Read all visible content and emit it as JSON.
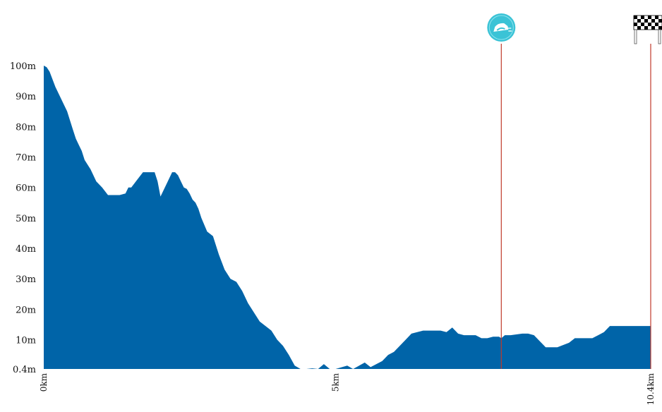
{
  "chart_data": {
    "type": "area",
    "title": "",
    "xlabel": "",
    "ylabel": "",
    "xlim": [
      0,
      10.4
    ],
    "ylim": [
      0.4,
      100
    ],
    "y_ticks": [
      {
        "value": 0.4,
        "label": "0.4m"
      },
      {
        "value": 10,
        "label": "10m"
      },
      {
        "value": 20,
        "label": "20m"
      },
      {
        "value": 30,
        "label": "30m"
      },
      {
        "value": 40,
        "label": "40m"
      },
      {
        "value": 50,
        "label": "50m"
      },
      {
        "value": 60,
        "label": "60m"
      },
      {
        "value": 70,
        "label": "70m"
      },
      {
        "value": 80,
        "label": "80m"
      },
      {
        "value": 90,
        "label": "90m"
      },
      {
        "value": 100,
        "label": "100m"
      }
    ],
    "x_ticks": [
      {
        "value": 0,
        "label": "0km"
      },
      {
        "value": 5,
        "label": "5km"
      },
      {
        "value": 10.4,
        "label": "10.4km"
      }
    ],
    "grid": false,
    "fill_color": "#0064a8",
    "marker_line_color": "#c0392b",
    "markers": [
      {
        "x": 7.84,
        "icon": "sprint-icon",
        "color": "#3bc3d6"
      },
      {
        "x": 10.4,
        "icon": "finish-flag-icon",
        "color": "#111111"
      }
    ],
    "series": [
      {
        "x": [
          0,
          0.05,
          0.1,
          0.2,
          0.3,
          0.4,
          0.5,
          0.55,
          0.6,
          0.65,
          0.7,
          0.8,
          0.9,
          1.0,
          1.1,
          1.2,
          1.3,
          1.4,
          1.45,
          1.5,
          1.6,
          1.7,
          1.8,
          1.9,
          1.95,
          2.0,
          2.1,
          2.2,
          2.25,
          2.3,
          2.35,
          2.4,
          2.45,
          2.5,
          2.55,
          2.6,
          2.65,
          2.7,
          2.8,
          2.9,
          3.0,
          3.1,
          3.2,
          3.3,
          3.4,
          3.5,
          3.6,
          3.7,
          3.8,
          3.9,
          4.0,
          4.1,
          4.2,
          4.3,
          4.4,
          4.5,
          4.6,
          4.7,
          4.8,
          4.9,
          5.0,
          5.2,
          5.3,
          5.5,
          5.6,
          5.8,
          5.9,
          6.0,
          6.2,
          6.3,
          6.5,
          6.6,
          6.8,
          6.9,
          7.0,
          7.1,
          7.2,
          7.3,
          7.4,
          7.5,
          7.6,
          7.7,
          7.8,
          7.84,
          7.9,
          8.0,
          8.2,
          8.3,
          8.4,
          8.6,
          8.8,
          9.0,
          9.1,
          9.3,
          9.4,
          9.5,
          9.6,
          9.7,
          9.8,
          9.9,
          10.0,
          10.1,
          10.2,
          10.3,
          10.4
        ],
        "y": [
          100,
          99.5,
          98,
          93,
          89,
          85,
          79,
          76,
          74,
          72,
          69,
          66,
          62,
          60,
          57.5,
          57.5,
          57.5,
          58,
          60,
          60,
          62.5,
          65,
          65,
          65,
          62,
          57,
          61,
          65,
          65,
          64,
          62,
          60,
          59.5,
          58,
          56,
          55,
          53,
          50,
          45.5,
          44,
          38,
          33,
          30,
          29,
          26,
          22,
          19,
          16,
          14.5,
          13,
          10,
          8,
          5,
          1.5,
          0.4,
          0.4,
          0.6,
          0.4,
          2,
          0.4,
          0.4,
          1.5,
          0.4,
          2.5,
          1,
          3,
          5,
          6,
          10,
          12,
          13,
          13,
          13,
          12.5,
          14,
          12,
          11.5,
          11.5,
          11.5,
          10.5,
          10.5,
          11,
          11,
          10.5,
          11.5,
          11.5,
          12,
          12,
          11.5,
          7.5,
          7.5,
          9,
          10.5,
          10.5,
          10.5,
          11.5,
          12.5,
          14.5,
          14.5,
          14.5,
          14.5,
          14.5,
          14.5,
          14.5,
          14.5
        ]
      }
    ]
  }
}
